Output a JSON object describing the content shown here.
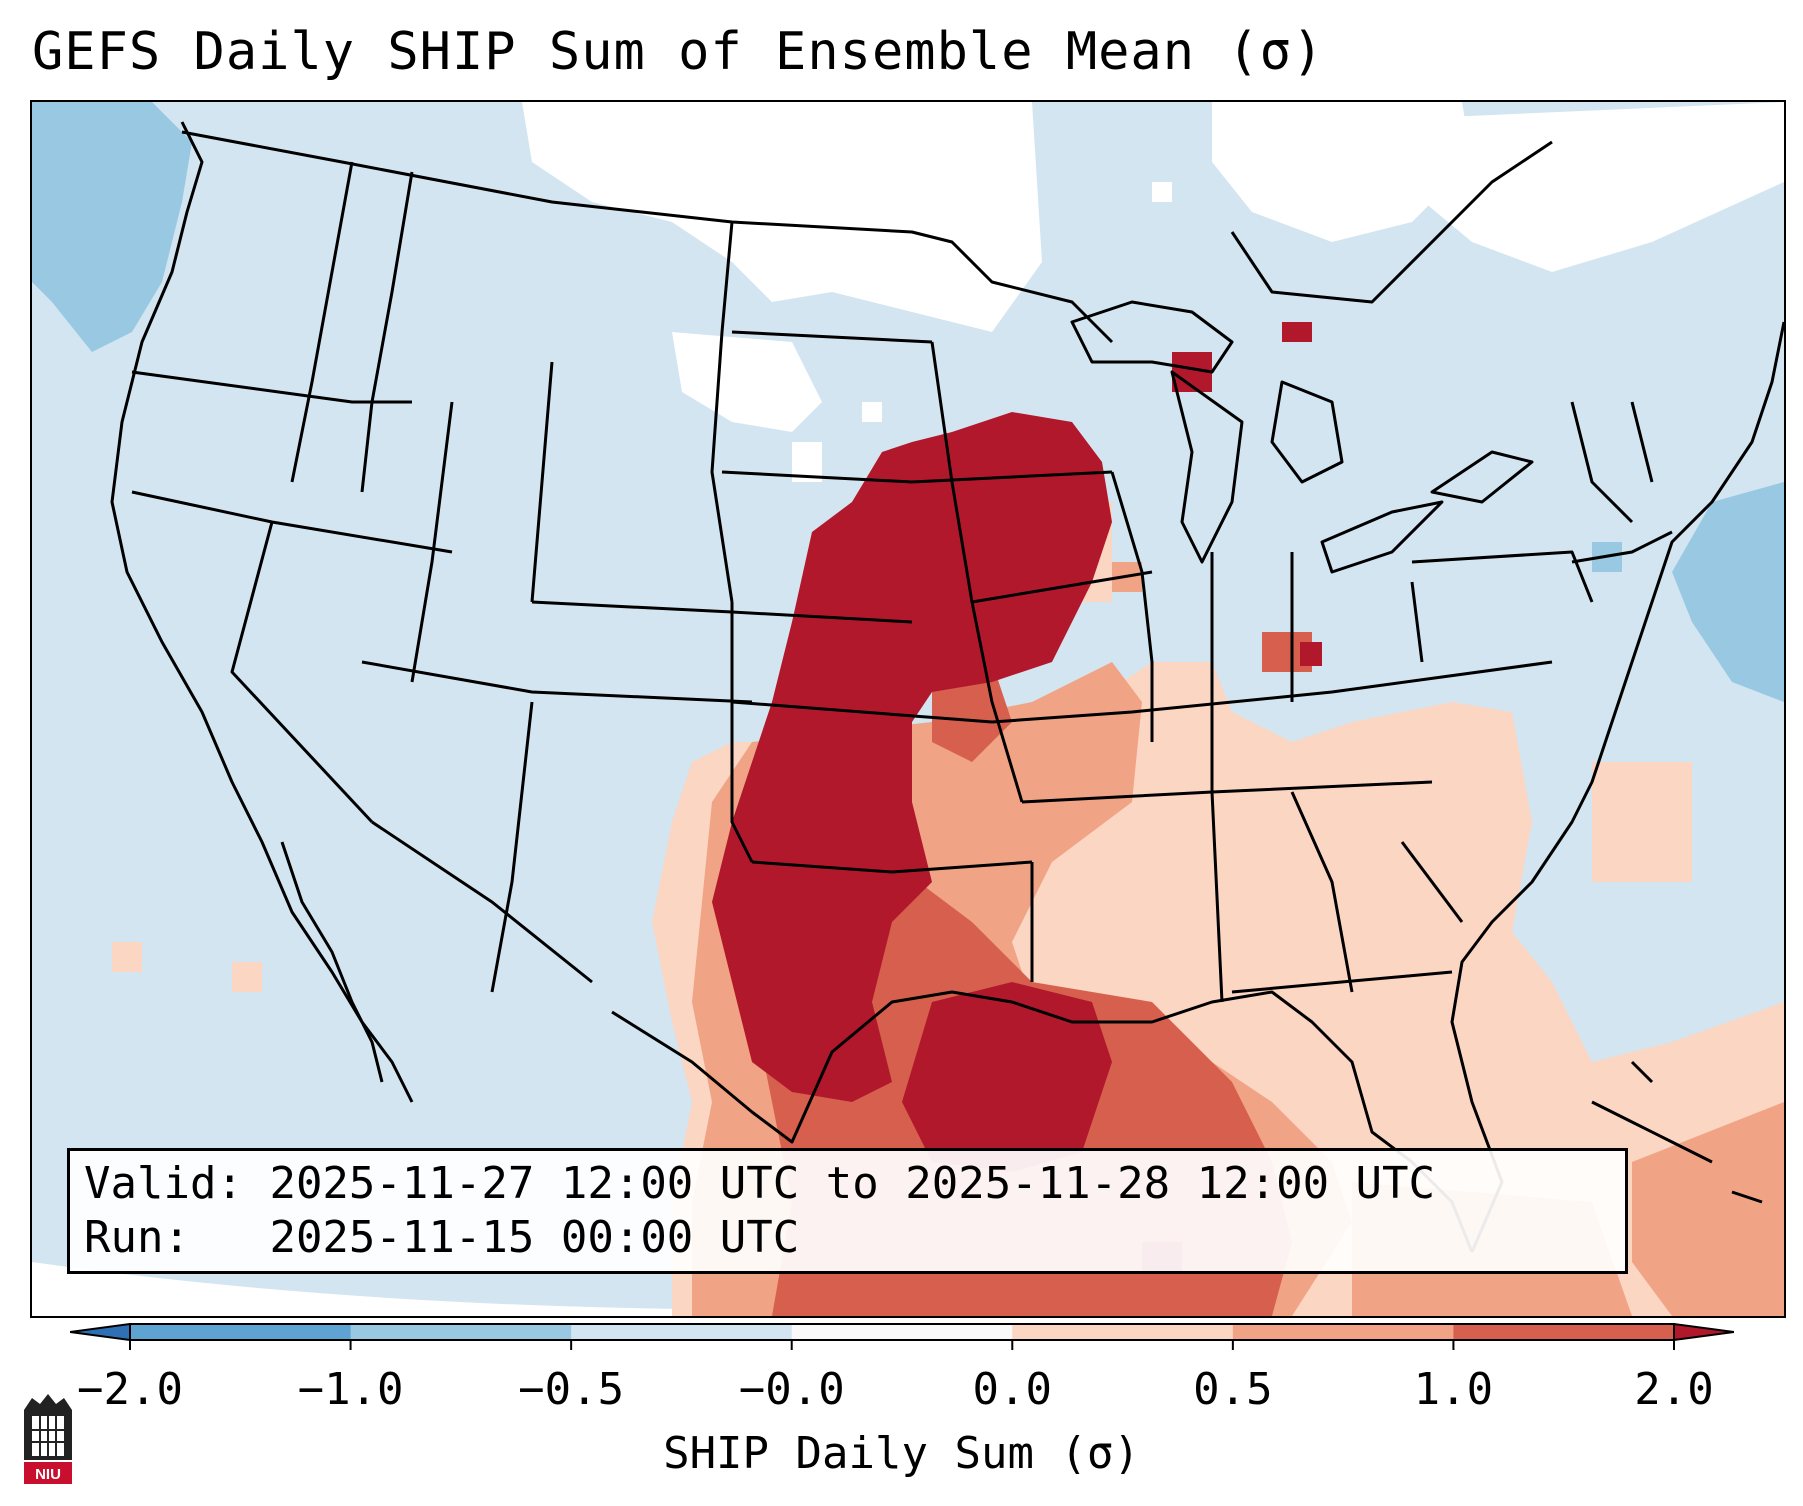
{
  "title": "GEFS Daily SHIP Sum of Ensemble Mean (σ)",
  "info": {
    "valid_label": "Valid:",
    "valid_value": "2025-11-27 12:00 UTC to 2025-11-28 12:00 UTC",
    "run_label": "Run:",
    "run_value": "2025-11-15 00:00 UTC"
  },
  "colorbar": {
    "label": "SHIP Daily Sum (σ)",
    "ticks": [
      "−2.0",
      "−1.0",
      "−0.5",
      "−0.0",
      "0.0",
      "0.5",
      "1.0",
      "2.0"
    ],
    "colors": [
      "#2f6fb4",
      "#5ea3d1",
      "#99c8e2",
      "#d2e5f1",
      "#f9f9f9",
      "#fbd6c3",
      "#f1a385",
      "#d6604d",
      "#b2182b"
    ],
    "extend": "both"
  },
  "colors": {
    "ocean_base": "#d2e5f1",
    "white_patch": "#ffffff",
    "light_blue": "#99c8e2",
    "pale_red": "#fbd6c3",
    "light_red": "#f1a385",
    "mid_red": "#d6604d",
    "dark_red": "#b2182b"
  },
  "logo_text": "NIU"
}
